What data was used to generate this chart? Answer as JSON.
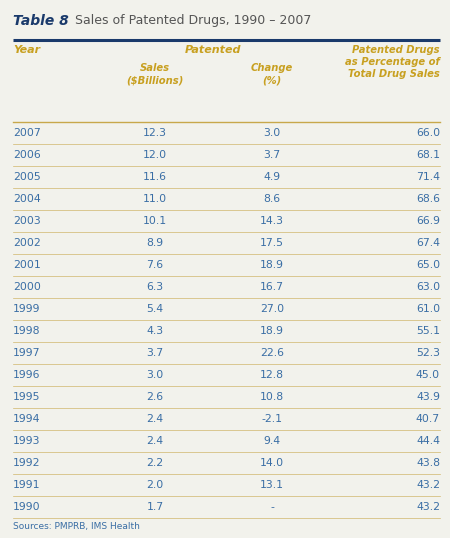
{
  "title_bold": "Table 8",
  "title_rest": " Sales of Patented Drugs, 1990 – 2007",
  "rows": [
    [
      "2007",
      "12.3",
      "3.0",
      "66.0"
    ],
    [
      "2006",
      "12.0",
      "3.7",
      "68.1"
    ],
    [
      "2005",
      "11.6",
      "4.9",
      "71.4"
    ],
    [
      "2004",
      "11.0",
      "8.6",
      "68.6"
    ],
    [
      "2003",
      "10.1",
      "14.3",
      "66.9"
    ],
    [
      "2002",
      "8.9",
      "17.5",
      "67.4"
    ],
    [
      "2001",
      "7.6",
      "18.9",
      "65.0"
    ],
    [
      "2000",
      "6.3",
      "16.7",
      "63.0"
    ],
    [
      "1999",
      "5.4",
      "27.0",
      "61.0"
    ],
    [
      "1998",
      "4.3",
      "18.9",
      "55.1"
    ],
    [
      "1997",
      "3.7",
      "22.6",
      "52.3"
    ],
    [
      "1996",
      "3.0",
      "12.8",
      "45.0"
    ],
    [
      "1995",
      "2.6",
      "10.8",
      "43.9"
    ],
    [
      "1994",
      "2.4",
      "-2.1",
      "40.7"
    ],
    [
      "1993",
      "2.4",
      "9.4",
      "44.4"
    ],
    [
      "1992",
      "2.2",
      "14.0",
      "43.8"
    ],
    [
      "1991",
      "2.0",
      "13.1",
      "43.2"
    ],
    [
      "1990",
      "1.7",
      "-",
      "43.2"
    ]
  ],
  "source": "Sources: PMPRB, IMS Health",
  "bg_color": "#f2f2ec",
  "header_color": "#c8a020",
  "data_color": "#3a6ea5",
  "title_bold_color": "#1a3a6b",
  "title_rest_color": "#555555",
  "top_border_color": "#1a3a6b",
  "row_line_color": "#c8a84b",
  "fig_w": 4.5,
  "fig_h": 5.38,
  "dpi": 100
}
